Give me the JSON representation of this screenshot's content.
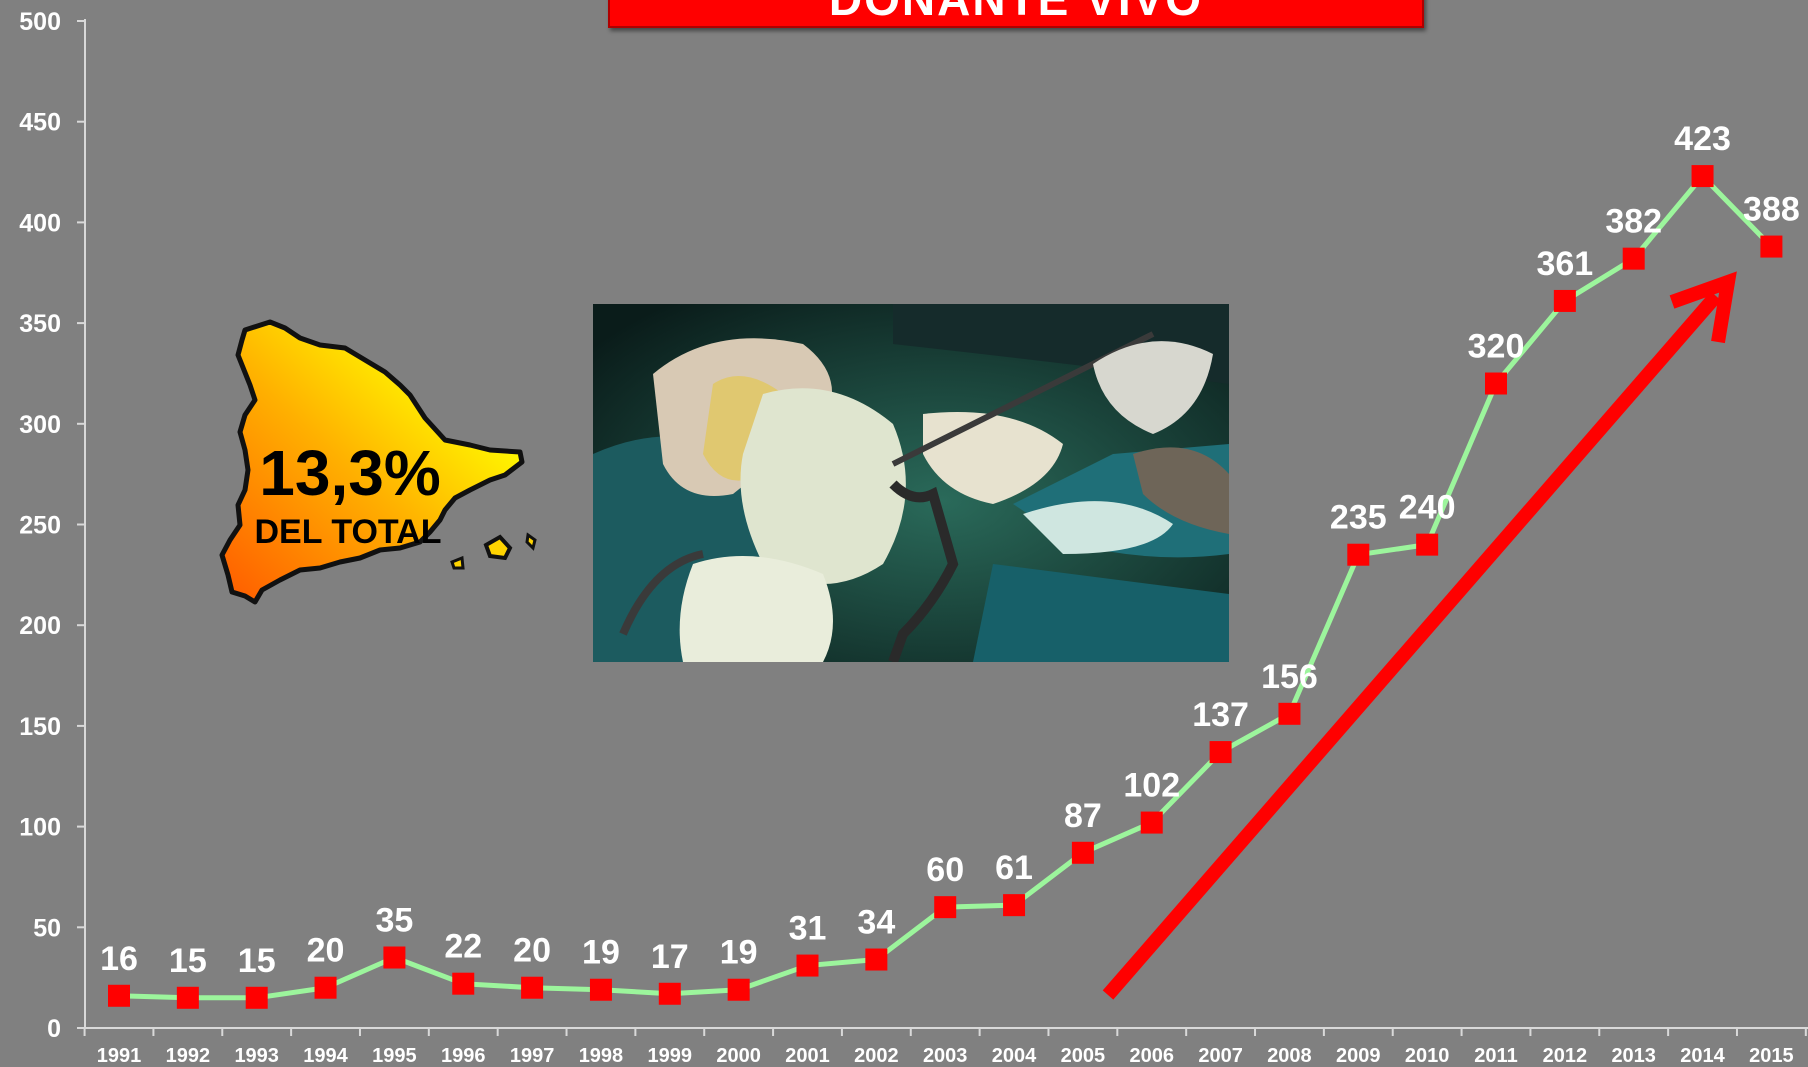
{
  "chart_data": {
    "type": "line",
    "title": "DONANTE VIVO",
    "categories": [
      "1991",
      "1992",
      "1993",
      "1994",
      "1995",
      "1996",
      "1997",
      "1998",
      "1999",
      "2000",
      "2001",
      "2002",
      "2003",
      "2004",
      "2005",
      "2006",
      "2007",
      "2008",
      "2009",
      "2010",
      "2011",
      "2012",
      "2013",
      "2014",
      "2015"
    ],
    "values": [
      16,
      15,
      15,
      20,
      35,
      22,
      20,
      19,
      17,
      19,
      31,
      34,
      60,
      61,
      87,
      102,
      137,
      156,
      235,
      240,
      320,
      361,
      382,
      423,
      388
    ],
    "ylim": [
      0,
      500
    ],
    "yticks": [
      0,
      50,
      100,
      150,
      200,
      250,
      300,
      350,
      400,
      450,
      500
    ],
    "grid": false,
    "legend": "none",
    "xlabel": "",
    "ylabel": "",
    "colors": {
      "line": "#9cf59c",
      "marker": "#ff0000",
      "trend_arrow": "#ff0000",
      "background": "#808080",
      "labels": "#ffffff"
    }
  },
  "inset": {
    "percent": "13,3%",
    "caption": "DEL TOTAL",
    "map_icon": "spain-map-icon"
  },
  "photo": {
    "icon": "surgery-photo-icon"
  }
}
